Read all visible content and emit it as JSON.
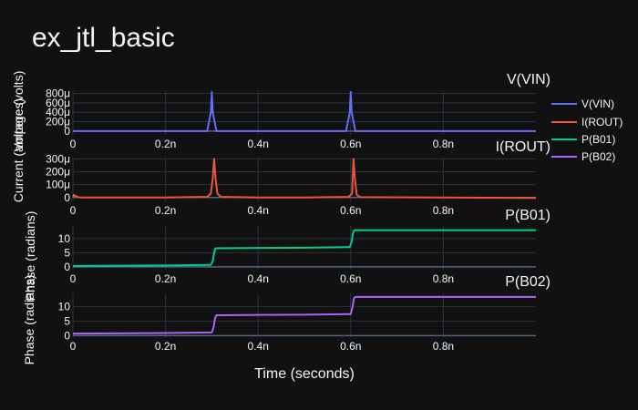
{
  "page": {
    "title": "ex_jtl_basic",
    "xlabel": "Time (seconds)",
    "background": "#111111",
    "grid_color": "#283442",
    "text_color": "#f2f5fa"
  },
  "legend": {
    "position": "right",
    "items": [
      {
        "name": "V(VIN)",
        "color": "#636efa"
      },
      {
        "name": "I(ROUT)",
        "color": "#ef553b"
      },
      {
        "name": "P(B01)",
        "color": "#00cc96"
      },
      {
        "name": "P(B02)",
        "color": "#ab63fa"
      }
    ]
  },
  "chart_data": [
    {
      "type": "line",
      "title": "V(VIN)",
      "ylabel": "Voltage (volts)",
      "xlim": [
        0,
        1e-09
      ],
      "ylim": [
        -8e-05,
        0.00085
      ],
      "x_ticks": [
        0,
        2e-10,
        4e-10,
        6e-10,
        8e-10
      ],
      "x_tick_labels": [
        "0",
        "0.2n",
        "0.4n",
        "0.6n",
        "0.8n"
      ],
      "y_ticks": [
        0,
        0.0002,
        0.0004,
        0.0006,
        0.0008
      ],
      "y_tick_labels": [
        "0",
        "200μ",
        "400μ",
        "600μ",
        "800μ"
      ],
      "series": [
        {
          "name": "V(VIN)",
          "color": "#636efa",
          "x": [
            0,
            2.9e-10,
            2.98e-10,
            3e-10,
            3.02e-10,
            3.1e-10,
            5.9e-10,
            5.98e-10,
            6e-10,
            6.02e-10,
            6.1e-10,
            1e-09
          ],
          "y": [
            0,
            0,
            0.0004,
            0.00083,
            0.0004,
            0,
            0,
            0.0004,
            0.00083,
            0.0004,
            0,
            0
          ]
        }
      ]
    },
    {
      "type": "line",
      "title": "I(ROUT)",
      "ylabel": "Current (amperes)",
      "xlim": [
        0,
        1e-09
      ],
      "ylim": [
        -3e-05,
        0.00031
      ],
      "x_ticks": [
        0,
        2e-10,
        4e-10,
        6e-10,
        8e-10
      ],
      "x_tick_labels": [
        "0",
        "0.2n",
        "0.4n",
        "0.6n",
        "0.8n"
      ],
      "y_ticks": [
        0,
        0.0001,
        0.0002,
        0.0003
      ],
      "y_tick_labels": [
        "0",
        "100μ",
        "200μ",
        "300μ"
      ],
      "series": [
        {
          "name": "I(ROUT)",
          "color": "#ef553b",
          "x": [
            0,
            2e-12,
            6e-12,
            1.2e-11,
            2e-11,
            1e-10,
            2e-10,
            2.9e-10,
            2.98e-10,
            3.02e-10,
            3.05e-10,
            3.08e-10,
            3.12e-10,
            3.2e-10,
            4e-10,
            5e-10,
            5.95e-10,
            6.03e-10,
            6.06e-10,
            6.09e-10,
            6.13e-10,
            6.2e-10,
            8e-10,
            1e-09
          ],
          "y": [
            0,
            2e-05,
            1.2e-05,
            2e-06,
            0,
            0,
            0,
            5e-06,
            3e-05,
            0.00015,
            0.0003,
            0.00015,
            3e-05,
            5e-06,
            0,
            0,
            5e-06,
            3e-05,
            0.0003,
            0.00015,
            2e-05,
            3e-06,
            0,
            -3e-06
          ]
        }
      ]
    },
    {
      "type": "line",
      "title": "P(B01)",
      "ylabel": "Phase (radians)",
      "xlim": [
        0,
        1e-09
      ],
      "ylim": [
        -1,
        14.5
      ],
      "x_ticks": [
        0,
        2e-10,
        4e-10,
        6e-10,
        8e-10
      ],
      "x_tick_labels": [
        "0",
        "0.2n",
        "0.4n",
        "0.6n",
        "0.8n"
      ],
      "y_ticks": [
        0,
        5,
        10
      ],
      "y_tick_labels": [
        "0",
        "5",
        "10"
      ],
      "series": [
        {
          "name": "P(B01)",
          "color": "#00cc96",
          "x": [
            0,
            1e-10,
            2e-10,
            2.98e-10,
            3.02e-10,
            3.05e-10,
            3.08e-10,
            4e-10,
            5e-10,
            5.98e-10,
            6.02e-10,
            6.05e-10,
            6.08e-10,
            8e-10,
            1e-09
          ],
          "y": [
            0.3,
            0.4,
            0.5,
            0.7,
            2.0,
            5.0,
            6.6,
            6.7,
            6.8,
            7.0,
            9.0,
            12.0,
            13.0,
            13.0,
            13.0
          ]
        }
      ]
    },
    {
      "type": "line",
      "title": "P(B02)",
      "ylabel": "Phase (radians)",
      "xlim": [
        0,
        1e-09
      ],
      "ylim": [
        -0.5,
        14.5
      ],
      "x_ticks": [
        0,
        2e-10,
        4e-10,
        6e-10,
        8e-10
      ],
      "x_tick_labels": [
        "0",
        "0.2n",
        "0.4n",
        "0.6n",
        "0.8n"
      ],
      "y_ticks": [
        0,
        5,
        10
      ],
      "y_tick_labels": [
        "0",
        "5",
        "10"
      ],
      "series": [
        {
          "name": "P(B02)",
          "color": "#ab63fa",
          "x": [
            0,
            1e-10,
            2e-10,
            3e-10,
            3.04e-10,
            3.07e-10,
            3.1e-10,
            4e-10,
            5e-10,
            6e-10,
            6.04e-10,
            6.07e-10,
            6.1e-10,
            8e-10,
            1e-09
          ],
          "y": [
            0.7,
            0.8,
            0.9,
            1.1,
            3.0,
            6.0,
            7.0,
            7.1,
            7.2,
            7.4,
            10.0,
            12.8,
            13.3,
            13.3,
            13.3
          ]
        }
      ]
    }
  ]
}
